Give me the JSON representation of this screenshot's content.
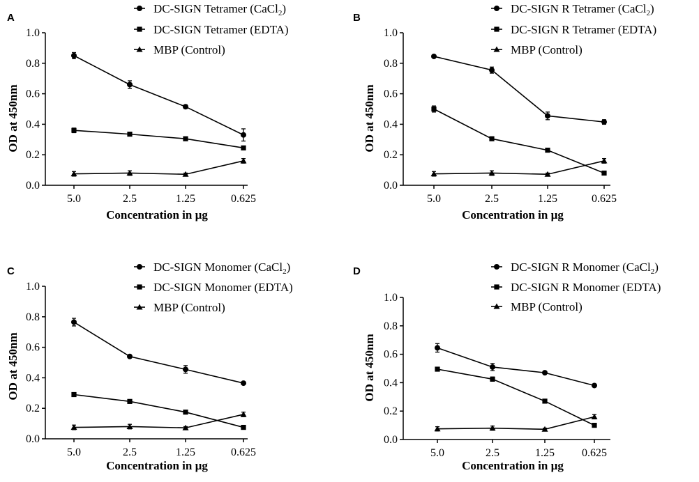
{
  "chart_data": [
    {
      "type": "line",
      "panel": "A",
      "xlabel": "Concentration in µg",
      "ylabel": "OD at 450nm",
      "categories": [
        "5.0",
        "2.5",
        "1.25",
        "0.625"
      ],
      "ylim": [
        0,
        1.0
      ],
      "yticks": [
        "0.0",
        "0.2",
        "0.4",
        "0.6",
        "0.8",
        "1.0"
      ],
      "legend_position": "top",
      "series": [
        {
          "name": "DC-SIGN Tetramer (CaCl",
          "name_sub": "2",
          "name_tail": ")",
          "marker": "circle",
          "values": [
            0.85,
            0.66,
            0.515,
            0.33
          ],
          "errors": [
            0.02,
            0.025,
            0.012,
            0.04
          ]
        },
        {
          "name": "DC-SIGN Tetramer (EDTA)",
          "marker": "square",
          "values": [
            0.36,
            0.335,
            0.305,
            0.245
          ],
          "errors": [
            0.015,
            0.01,
            0.01,
            0.01
          ]
        },
        {
          "name": "MBP (Control)",
          "marker": "triangle",
          "values": [
            0.075,
            0.08,
            0.072,
            0.16
          ],
          "errors": [
            0.015,
            0.015,
            0.008,
            0.015
          ]
        }
      ]
    },
    {
      "type": "line",
      "panel": "B",
      "xlabel": "Concentration in µg",
      "ylabel": "OD at 450nm",
      "categories": [
        "5.0",
        "2.5",
        "1.25",
        "0.625"
      ],
      "ylim": [
        0,
        1.0
      ],
      "yticks": [
        "0.0",
        "0.2",
        "0.4",
        "0.6",
        "0.8",
        "1.0"
      ],
      "legend_position": "top",
      "series": [
        {
          "name": "DC-SIGN R Tetramer (CaCl",
          "name_sub": "2",
          "name_tail": ")",
          "marker": "circle",
          "values": [
            0.845,
            0.755,
            0.455,
            0.415
          ],
          "errors": [
            0.008,
            0.02,
            0.025,
            0.015
          ]
        },
        {
          "name": "DC-SIGN R Tetramer (EDTA)",
          "marker": "square",
          "values": [
            0.5,
            0.305,
            0.23,
            0.08
          ],
          "errors": [
            0.02,
            0.01,
            0.01,
            0.008
          ]
        },
        {
          "name": "MBP (Control)",
          "marker": "triangle",
          "values": [
            0.075,
            0.08,
            0.072,
            0.16
          ],
          "errors": [
            0.015,
            0.015,
            0.008,
            0.015
          ]
        }
      ]
    },
    {
      "type": "line",
      "panel": "C",
      "xlabel": "Concentration in µg",
      "ylabel": "OD at 450nm",
      "categories": [
        "5.0",
        "2.5",
        "1.25",
        "0.625"
      ],
      "ylim": [
        0,
        1.0
      ],
      "yticks": [
        "0.0",
        "0.2",
        "0.4",
        "0.6",
        "0.8",
        "1.0"
      ],
      "legend_position": "top",
      "series": [
        {
          "name": "DC-SIGN Monomer (CaCl",
          "name_sub": "2",
          "name_tail": ")",
          "marker": "circle",
          "values": [
            0.765,
            0.54,
            0.455,
            0.365
          ],
          "errors": [
            0.025,
            0.008,
            0.025,
            0.008
          ]
        },
        {
          "name": "DC-SIGN Monomer (EDTA)",
          "marker": "square",
          "values": [
            0.29,
            0.245,
            0.175,
            0.075
          ],
          "errors": [
            0.008,
            0.008,
            0.008,
            0.008
          ]
        },
        {
          "name": "MBP (Control)",
          "marker": "triangle",
          "values": [
            0.075,
            0.08,
            0.072,
            0.16
          ],
          "errors": [
            0.015,
            0.015,
            0.008,
            0.015
          ]
        }
      ]
    },
    {
      "type": "line",
      "panel": "D",
      "xlabel": "Concentration in µg",
      "ylabel": "OD at 450nm",
      "categories": [
        "5.0",
        "2.5",
        "1.25",
        "0.625"
      ],
      "ylim": [
        0,
        1.0
      ],
      "yticks": [
        "0.0",
        "0.2",
        "0.4",
        "0.6",
        "0.8",
        "1.0"
      ],
      "legend_position": "top",
      "series": [
        {
          "name": "DC-SIGN R Monomer (CaCl",
          "name_sub": "2",
          "name_tail": ")",
          "marker": "circle",
          "values": [
            0.645,
            0.51,
            0.47,
            0.38
          ],
          "errors": [
            0.03,
            0.025,
            0.01,
            0.008
          ]
        },
        {
          "name": "DC-SIGN R Monomer (EDTA)",
          "marker": "square",
          "values": [
            0.495,
            0.425,
            0.27,
            0.1
          ],
          "errors": [
            0.008,
            0.015,
            0.008,
            0.008
          ]
        },
        {
          "name": "MBP (Control)",
          "marker": "triangle",
          "values": [
            0.075,
            0.08,
            0.072,
            0.16
          ],
          "errors": [
            0.015,
            0.015,
            0.008,
            0.015
          ]
        }
      ]
    }
  ],
  "colors": {
    "ink": "#000000",
    "background": "#ffffff"
  }
}
